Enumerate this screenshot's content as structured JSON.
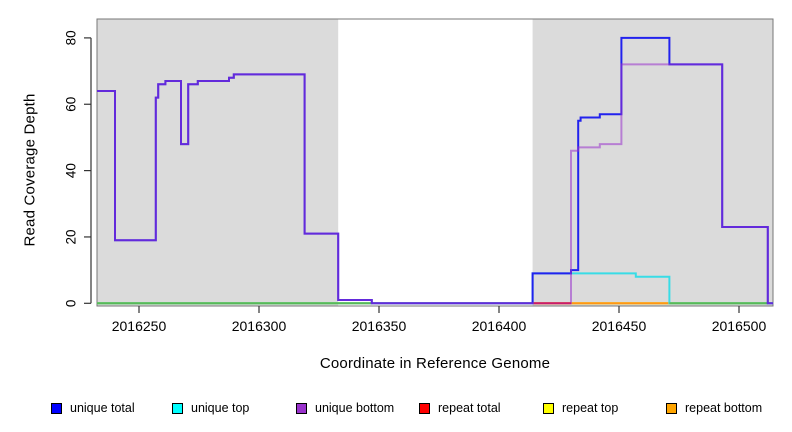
{
  "chart_data": {
    "type": "line",
    "subtype": "step-coverage-plot",
    "title": "",
    "xlabel": "Coordinate in Reference Genome",
    "ylabel": "Read Coverage Depth",
    "xlim": [
      2016232.5,
      2016514.2
    ],
    "ylim": [
      0,
      86
    ],
    "x_ticks": [
      2016250,
      2016300,
      2016350,
      2016400,
      2016450,
      2016500
    ],
    "y_ticks": [
      0,
      20,
      40,
      60,
      80
    ],
    "grid": false,
    "background_shading": {
      "color": "#dbdbdb",
      "note": "gray rectangles behind data; middle window is white",
      "regions": [
        [
          2016232.5,
          2016333
        ],
        [
          2016414,
          2016514.2
        ]
      ]
    },
    "series": [
      {
        "name": "repeat top",
        "color": "#ffff00",
        "opacity": 1,
        "segments": [
          [
            [
              2016232.5,
              0
            ],
            [
              2016514.2,
              0
            ]
          ]
        ]
      },
      {
        "name": "repeat total",
        "color": "#ff0000",
        "opacity": 1,
        "segments": [
          [
            [
              2016414,
              0
            ],
            [
              2016430,
              0
            ]
          ]
        ]
      },
      {
        "name": "repeat bottom",
        "color": "#ff9516",
        "opacity": 1,
        "segments": [
          [
            [
              2016430,
              0
            ],
            [
              2016471,
              0
            ]
          ]
        ]
      },
      {
        "name": "unique top",
        "color": "#38dce6",
        "opacity": 1,
        "segments": [
          [
            [
              2016232.5,
              0
            ],
            [
              2016414,
              9
            ],
            [
              2016457,
              8
            ],
            [
              2016471,
              0
            ],
            [
              2016514.2,
              0
            ]
          ]
        ]
      },
      {
        "name": "unlabeled green baseline",
        "color": "#58b858",
        "opacity": 1,
        "segments": [
          [
            [
              2016232.5,
              0
            ],
            [
              2016347,
              0
            ]
          ],
          [
            [
              2016471,
              0
            ],
            [
              2016512,
              0
            ]
          ]
        ]
      },
      {
        "name": "unique total",
        "color": "#2222ee",
        "opacity": 1,
        "segments": [
          [
            [
              2016232.5,
              64
            ],
            [
              2016240,
              19
            ],
            [
              2016257,
              62
            ],
            [
              2016258,
              66
            ],
            [
              2016261,
              67
            ],
            [
              2016267.5,
              48
            ],
            [
              2016270.5,
              66
            ],
            [
              2016274.5,
              67
            ],
            [
              2016287.5,
              68
            ],
            [
              2016289.5,
              69
            ],
            [
              2016319,
              21
            ],
            [
              2016333,
              1
            ],
            [
              2016347,
              0
            ],
            [
              2016414,
              9
            ],
            [
              2016430,
              10
            ],
            [
              2016433,
              55
            ],
            [
              2016434,
              56
            ],
            [
              2016442,
              57
            ],
            [
              2016451,
              80
            ],
            [
              2016471,
              72
            ],
            [
              2016493,
              23
            ],
            [
              2016512,
              0
            ],
            [
              2016514.2,
              0
            ]
          ]
        ]
      },
      {
        "name": "unique bottom",
        "color": "#9932cc",
        "opacity": 0.55,
        "segments": [
          [
            [
              2016232.5,
              64
            ],
            [
              2016240,
              19
            ],
            [
              2016257,
              62
            ],
            [
              2016258,
              66
            ],
            [
              2016261,
              67
            ],
            [
              2016267.5,
              48
            ],
            [
              2016270.5,
              66
            ],
            [
              2016274.5,
              67
            ],
            [
              2016287.5,
              68
            ],
            [
              2016289.5,
              69
            ],
            [
              2016319,
              21
            ],
            [
              2016333,
              1
            ],
            [
              2016347,
              0
            ],
            [
              2016414,
              0
            ],
            [
              2016430,
              46
            ],
            [
              2016433,
              47
            ],
            [
              2016442,
              48
            ],
            [
              2016451,
              72
            ],
            [
              2016471,
              72
            ],
            [
              2016493,
              23
            ],
            [
              2016512,
              0
            ],
            [
              2016514.2,
              0
            ]
          ]
        ]
      }
    ],
    "legend": [
      {
        "label": "unique total",
        "color": "#0000ff"
      },
      {
        "label": "unique top",
        "color": "#00ffff"
      },
      {
        "label": "unique bottom",
        "color": "#9932cc"
      },
      {
        "label": "repeat total",
        "color": "#ff0000"
      },
      {
        "label": "repeat top",
        "color": "#ffff00"
      },
      {
        "label": "repeat bottom",
        "color": "#ffa500"
      }
    ],
    "legend_position": "bottom"
  }
}
